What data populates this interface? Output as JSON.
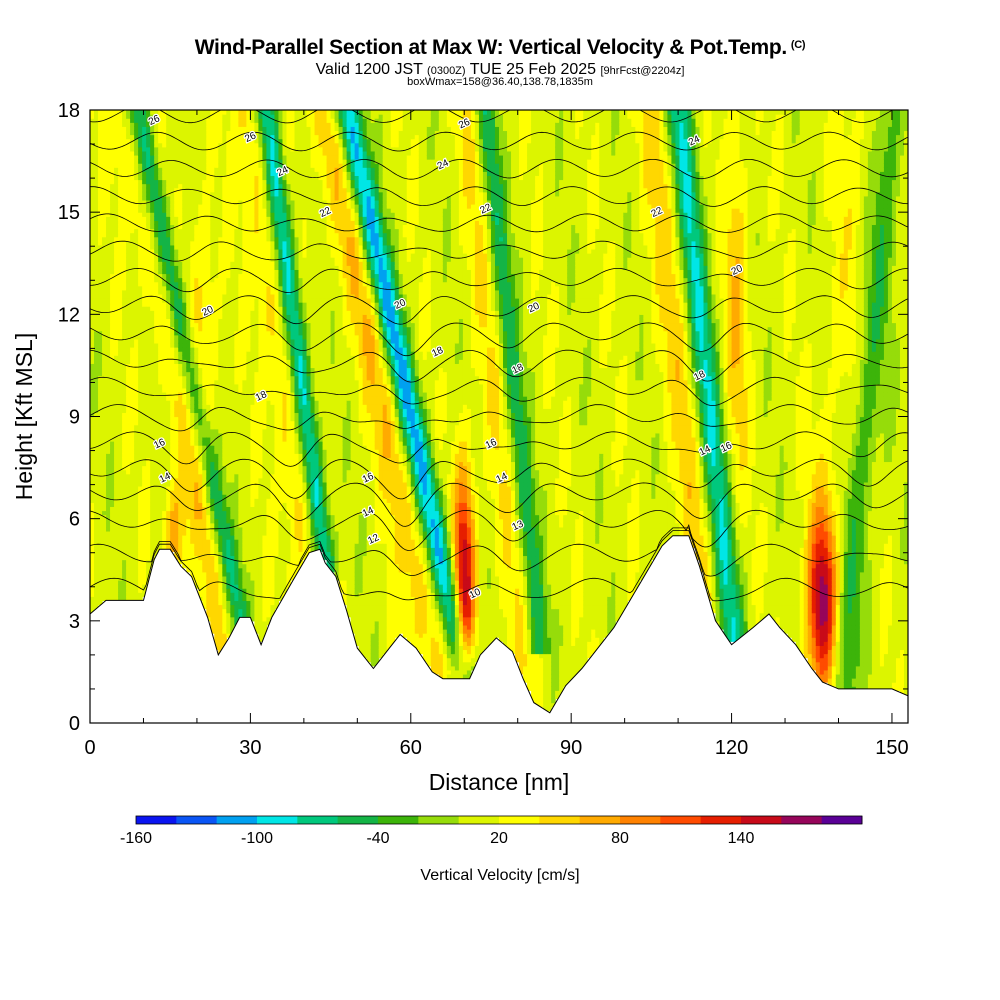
{
  "title": {
    "main": "Wind-Parallel Section at Max W: Vertical Velocity & Pot.Temp.",
    "corner_mark": "(C)",
    "valid_prefix": "Valid 1200 JST",
    "valid_utc": "(0300Z)",
    "valid_date": "TUE 25 Feb 2025",
    "forecast": "[9hrFcst@2204z]",
    "box_info": "boxWmax=158@36.40,138.78,1835m"
  },
  "chart_data": {
    "type": "heatmap",
    "xlabel": "Distance [nm]",
    "ylabel": "Height [Kft MSL]",
    "xlim": [
      0,
      153
    ],
    "ylim": [
      0,
      18
    ],
    "x_ticks": [
      0,
      30,
      60,
      90,
      120,
      150
    ],
    "y_ticks": [
      0,
      3,
      6,
      9,
      12,
      15,
      18
    ],
    "colorbar": {
      "title": "Vertical Velocity [cm/s]",
      "levels": [
        -160,
        -140,
        -120,
        -100,
        -80,
        -60,
        -40,
        -20,
        0,
        20,
        40,
        60,
        80,
        100,
        120,
        140,
        160,
        180
      ],
      "tick_labels": [
        -160,
        -100,
        -40,
        20,
        80,
        140
      ],
      "colors": [
        "#0a14f0",
        "#0a55f5",
        "#00a0f0",
        "#00e6e6",
        "#00c87d",
        "#14b446",
        "#3cb40a",
        "#96dc0a",
        "#dcf500",
        "#ffff00",
        "#ffd700",
        "#ffaa00",
        "#ff8200",
        "#ff4b00",
        "#e61e00",
        "#c80a19",
        "#96055a",
        "#5a0096"
      ]
    },
    "terrain_kft": [
      [
        0,
        3.2
      ],
      [
        3,
        3.6
      ],
      [
        10,
        3.6
      ],
      [
        12,
        4.8
      ],
      [
        13,
        5.1
      ],
      [
        15,
        5.1
      ],
      [
        17,
        4.6
      ],
      [
        19,
        4.3
      ],
      [
        20,
        3.9
      ],
      [
        22,
        3.1
      ],
      [
        24,
        2.0
      ],
      [
        26,
        2.5
      ],
      [
        28,
        3.1
      ],
      [
        30,
        3.1
      ],
      [
        32,
        2.3
      ],
      [
        34,
        3.1
      ],
      [
        38,
        4.2
      ],
      [
        41,
        5.0
      ],
      [
        43,
        5.1
      ],
      [
        44,
        4.7
      ],
      [
        46,
        4.3
      ],
      [
        48,
        3.3
      ],
      [
        50,
        2.2
      ],
      [
        53,
        1.6
      ],
      [
        56,
        2.2
      ],
      [
        58,
        2.6
      ],
      [
        61,
        2.2
      ],
      [
        64,
        1.5
      ],
      [
        66,
        1.3
      ],
      [
        69,
        1.3
      ],
      [
        71,
        1.3
      ],
      [
        73,
        2.0
      ],
      [
        76,
        2.5
      ],
      [
        79,
        2.1
      ],
      [
        81,
        1.3
      ],
      [
        83,
        0.6
      ],
      [
        86,
        0.3
      ],
      [
        89,
        1.1
      ],
      [
        92,
        1.6
      ],
      [
        95,
        2.2
      ],
      [
        98,
        2.8
      ],
      [
        101,
        3.6
      ],
      [
        104,
        4.4
      ],
      [
        107,
        5.2
      ],
      [
        109,
        5.5
      ],
      [
        112,
        5.5
      ],
      [
        114,
        4.6
      ],
      [
        117,
        3.0
      ],
      [
        120,
        2.3
      ],
      [
        124,
        2.8
      ],
      [
        127,
        3.2
      ],
      [
        129,
        2.8
      ],
      [
        132,
        2.3
      ],
      [
        135,
        1.6
      ],
      [
        137,
        1.2
      ],
      [
        140,
        1.0
      ],
      [
        145,
        1.0
      ],
      [
        150,
        1.0
      ],
      [
        153,
        0.8
      ]
    ],
    "ridges": [
      {
        "x_kft_top": 9,
        "x_bottom": 28,
        "h_bottom": 3.1,
        "strength": 0.8,
        "width": 4
      },
      {
        "x_kft_top": 33,
        "x_bottom": 44,
        "h_bottom": 4.7,
        "strength": 1.1,
        "width": 4
      },
      {
        "x_kft_top": 48,
        "x_bottom": 70,
        "h_bottom": 1.5,
        "strength": 1.3,
        "width": 5
      },
      {
        "x_kft_top": 74,
        "x_bottom": 84,
        "h_bottom": 2.5,
        "strength": 0.7,
        "width": 4
      },
      {
        "x_kft_top": 110,
        "x_bottom": 120,
        "h_bottom": 2.8,
        "strength": 1.0,
        "width": 5
      },
      {
        "x_kft_top": 150,
        "x_bottom": 141,
        "h_bottom": 1.3,
        "strength": 0.5,
        "width": 6
      }
    ],
    "updraft_cores": [
      {
        "x": 70,
        "h": 4.0,
        "w_max": 158,
        "rx": 1.4,
        "ry": 2.4
      },
      {
        "x": 137,
        "h": 3.6,
        "w_max": 140,
        "rx": 1.8,
        "ry": 1.8
      },
      {
        "x": 16,
        "h": 5.6,
        "w_max": 70,
        "rx": 1.3,
        "ry": 1.0
      },
      {
        "x": 121,
        "h": 12.5,
        "w_max": 45,
        "rx": 1.6,
        "ry": 4.0
      },
      {
        "x": 21,
        "h": 11.0,
        "w_max": 40,
        "rx": 2.0,
        "ry": 3.0
      }
    ],
    "isentropes": {
      "base_height_kft": [
        4.0,
        5.0,
        6.0,
        6.8,
        7.5,
        8.3,
        9.1,
        9.9,
        10.7,
        11.5,
        12.3,
        13.1,
        13.9,
        14.7,
        15.5,
        16.3,
        17.1,
        17.9
      ],
      "labels": [
        {
          "text": "10",
          "x": 72,
          "h": 3.8
        },
        {
          "text": "12",
          "x": 53,
          "h": 5.4
        },
        {
          "text": "13",
          "x": 80,
          "h": 5.8
        },
        {
          "text": "14",
          "x": 14,
          "h": 7.2
        },
        {
          "text": "14",
          "x": 52,
          "h": 6.2
        },
        {
          "text": "14",
          "x": 77,
          "h": 7.2
        },
        {
          "text": "14",
          "x": 115,
          "h": 8.0
        },
        {
          "text": "16",
          "x": 13,
          "h": 8.2
        },
        {
          "text": "16",
          "x": 52,
          "h": 7.2
        },
        {
          "text": "16",
          "x": 75,
          "h": 8.2
        },
        {
          "text": "16",
          "x": 119,
          "h": 8.1
        },
        {
          "text": "18",
          "x": 32,
          "h": 9.6
        },
        {
          "text": "18",
          "x": 65,
          "h": 10.9
        },
        {
          "text": "18",
          "x": 80,
          "h": 10.4
        },
        {
          "text": "18",
          "x": 114,
          "h": 10.2
        },
        {
          "text": "20",
          "x": 22,
          "h": 12.1
        },
        {
          "text": "20",
          "x": 58,
          "h": 12.3
        },
        {
          "text": "20",
          "x": 83,
          "h": 12.2
        },
        {
          "text": "20",
          "x": 121,
          "h": 13.3
        },
        {
          "text": "22",
          "x": 44,
          "h": 15.0
        },
        {
          "text": "22",
          "x": 74,
          "h": 15.1
        },
        {
          "text": "22",
          "x": 106,
          "h": 15.0
        },
        {
          "text": "24",
          "x": 36,
          "h": 16.2
        },
        {
          "text": "24",
          "x": 66,
          "h": 16.4
        },
        {
          "text": "24",
          "x": 113,
          "h": 17.1
        },
        {
          "text": "26",
          "x": 30,
          "h": 17.2
        },
        {
          "text": "26",
          "x": 70,
          "h": 17.6
        },
        {
          "text": "26",
          "x": 12,
          "h": 17.7
        }
      ]
    }
  }
}
